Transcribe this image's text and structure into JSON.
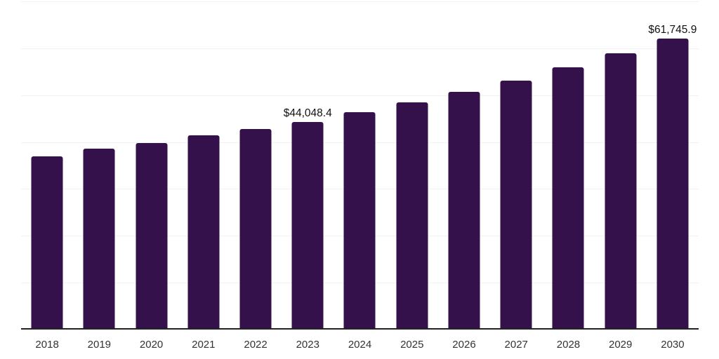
{
  "chart_data": {
    "type": "bar",
    "title": "",
    "xlabel": "",
    "ylabel": "",
    "categories": [
      "2018",
      "2019",
      "2020",
      "2021",
      "2022",
      "2023",
      "2024",
      "2025",
      "2026",
      "2027",
      "2028",
      "2029",
      "2030"
    ],
    "values": [
      36600,
      38300,
      39500,
      41100,
      42500,
      44048.4,
      46100,
      48200,
      50400,
      52800,
      55600,
      58600,
      61745.9
    ],
    "data_labels": [
      "",
      "",
      "",
      "",
      "",
      "$44,048.4",
      "",
      "",
      "",
      "",
      "",
      "",
      "$61,745.9"
    ],
    "labeled_points": [
      {
        "category": "2023",
        "label": "$44,048.4",
        "value": 44048.4
      },
      {
        "category": "2030",
        "label": "$61,745.9",
        "value": 61745.9
      }
    ],
    "ylim": [
      0,
      70000
    ],
    "gridline_interval": 10000,
    "grid": "horizontal-only",
    "y_axis_labels_visible": false,
    "legend": "none",
    "colors": {
      "bar": "#35114C",
      "gridline": "#F2F2F2",
      "axis_line": "#222222",
      "tick_label": "#333333",
      "data_label": "#111111",
      "background": "#FFFFFF"
    }
  }
}
